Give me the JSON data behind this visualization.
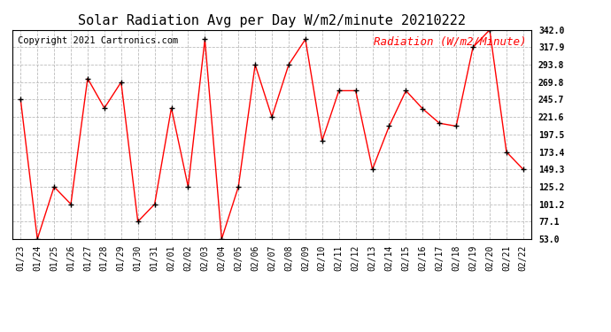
{
  "title": "Solar Radiation Avg per Day W/m2/minute 20210222",
  "copyright": "Copyright 2021 Cartronics.com",
  "legend_label": "Radiation (W/m2/Minute)",
  "dates": [
    "01/23",
    "01/24",
    "01/25",
    "01/26",
    "01/27",
    "01/28",
    "01/29",
    "01/30",
    "01/31",
    "02/01",
    "02/02",
    "02/03",
    "02/04",
    "02/05",
    "02/06",
    "02/07",
    "02/08",
    "02/09",
    "02/10",
    "02/11",
    "02/12",
    "02/13",
    "02/14",
    "02/15",
    "02/16",
    "02/17",
    "02/18",
    "02/19",
    "02/20",
    "02/21",
    "02/22"
  ],
  "values": [
    245.7,
    53.0,
    125.2,
    101.2,
    275.0,
    234.0,
    269.8,
    77.1,
    101.2,
    234.0,
    125.2,
    329.0,
    53.0,
    125.2,
    293.8,
    221.6,
    293.8,
    329.0,
    189.0,
    258.0,
    258.0,
    149.3,
    209.0,
    258.0,
    233.0,
    213.0,
    209.0,
    317.9,
    342.0,
    173.4,
    149.3
  ],
  "ylim_min": 53.0,
  "ylim_max": 342.0,
  "yticks": [
    53.0,
    77.1,
    101.2,
    125.2,
    149.3,
    173.4,
    197.5,
    221.6,
    245.7,
    269.8,
    293.8,
    317.9,
    342.0
  ],
  "line_color": "red",
  "marker_color": "black",
  "background_color": "#ffffff",
  "grid_color": "#bbbbbb",
  "title_fontsize": 11,
  "copyright_fontsize": 7.5,
  "legend_fontsize": 9,
  "tick_fontsize": 7,
  "border_color": "#000000"
}
